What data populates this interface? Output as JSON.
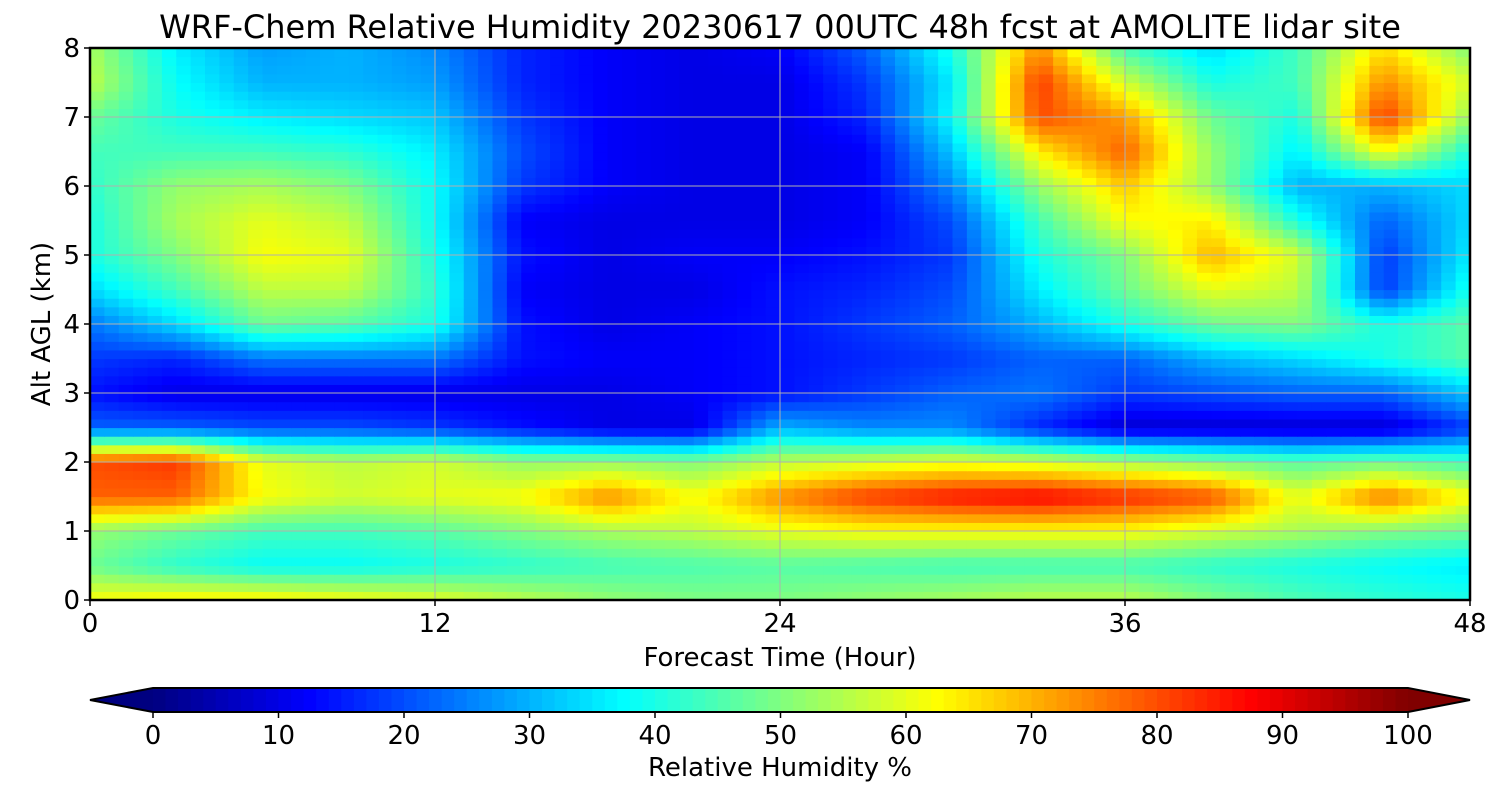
{
  "chart_data": {
    "type": "heatmap",
    "title": "WRF-Chem Relative Humidity 20230617 00UTC 48h fcst at AMOLITE lidar site",
    "xlabel": "Forecast Time (Hour)",
    "ylabel": "Alt AGL (km)",
    "xlim": [
      0,
      48
    ],
    "ylim": [
      0,
      8
    ],
    "xticks": [
      0,
      12,
      24,
      36,
      48
    ],
    "yticks": [
      0,
      1,
      2,
      3,
      4,
      5,
      6,
      7,
      8
    ],
    "grid": true,
    "colormap": "jet",
    "colorbar": {
      "label": "Relative Humidity %",
      "ticks": [
        0,
        10,
        20,
        30,
        40,
        50,
        60,
        70,
        80,
        90,
        100
      ],
      "vmin": 0,
      "vmax": 100,
      "extend": "both",
      "orientation": "horizontal"
    },
    "x": [
      0,
      3,
      6,
      9,
      12,
      15,
      18,
      21,
      24,
      27,
      30,
      33,
      36,
      39,
      42,
      45,
      48
    ],
    "y": [
      0,
      0.5,
      1,
      1.5,
      2,
      2.5,
      3,
      3.5,
      4,
      4.5,
      5,
      5.5,
      6,
      6.5,
      7,
      7.5,
      8
    ],
    "z": [
      [
        62,
        64,
        64,
        62,
        60,
        56,
        52,
        50,
        50,
        52,
        54,
        56,
        56,
        50,
        45,
        42,
        40
      ],
      [
        48,
        42,
        38,
        38,
        40,
        42,
        44,
        45,
        46,
        45,
        44,
        44,
        44,
        42,
        40,
        38,
        36
      ],
      [
        52,
        48,
        44,
        44,
        46,
        50,
        54,
        56,
        60,
        62,
        62,
        62,
        62,
        58,
        54,
        50,
        48
      ],
      [
        78,
        78,
        62,
        58,
        60,
        62,
        74,
        62,
        74,
        82,
        86,
        88,
        84,
        80,
        60,
        76,
        62
      ],
      [
        80,
        82,
        60,
        56,
        58,
        52,
        52,
        50,
        56,
        58,
        60,
        58,
        54,
        50,
        46,
        48,
        44
      ],
      [
        22,
        22,
        20,
        20,
        18,
        14,
        10,
        10,
        30,
        26,
        26,
        16,
        8,
        8,
        8,
        8,
        18
      ],
      [
        14,
        10,
        10,
        10,
        10,
        10,
        10,
        12,
        14,
        18,
        22,
        24,
        18,
        20,
        22,
        22,
        32
      ],
      [
        18,
        16,
        24,
        24,
        24,
        14,
        12,
        12,
        14,
        16,
        18,
        22,
        22,
        30,
        34,
        40,
        46
      ],
      [
        24,
        34,
        48,
        46,
        40,
        14,
        10,
        12,
        14,
        18,
        22,
        30,
        40,
        48,
        50,
        40,
        46
      ],
      [
        34,
        44,
        56,
        56,
        42,
        12,
        10,
        10,
        14,
        16,
        20,
        36,
        48,
        60,
        56,
        18,
        40
      ],
      [
        40,
        50,
        62,
        60,
        40,
        14,
        10,
        12,
        12,
        14,
        18,
        40,
        50,
        70,
        58,
        18,
        36
      ],
      [
        40,
        54,
        60,
        56,
        38,
        12,
        10,
        10,
        10,
        12,
        20,
        44,
        62,
        64,
        40,
        22,
        34
      ],
      [
        42,
        52,
        54,
        50,
        38,
        18,
        12,
        10,
        10,
        12,
        26,
        52,
        68,
        52,
        30,
        30,
        34
      ],
      [
        44,
        44,
        44,
        42,
        36,
        20,
        12,
        10,
        10,
        12,
        32,
        64,
        78,
        52,
        36,
        62,
        40
      ],
      [
        48,
        40,
        36,
        34,
        32,
        18,
        12,
        10,
        10,
        16,
        38,
        80,
        72,
        48,
        40,
        82,
        52
      ],
      [
        56,
        38,
        30,
        30,
        28,
        16,
        12,
        10,
        10,
        18,
        36,
        82,
        58,
        40,
        44,
        74,
        58
      ],
      [
        54,
        36,
        28,
        30,
        26,
        16,
        12,
        10,
        12,
        22,
        40,
        74,
        44,
        34,
        44,
        66,
        50
      ]
    ]
  }
}
